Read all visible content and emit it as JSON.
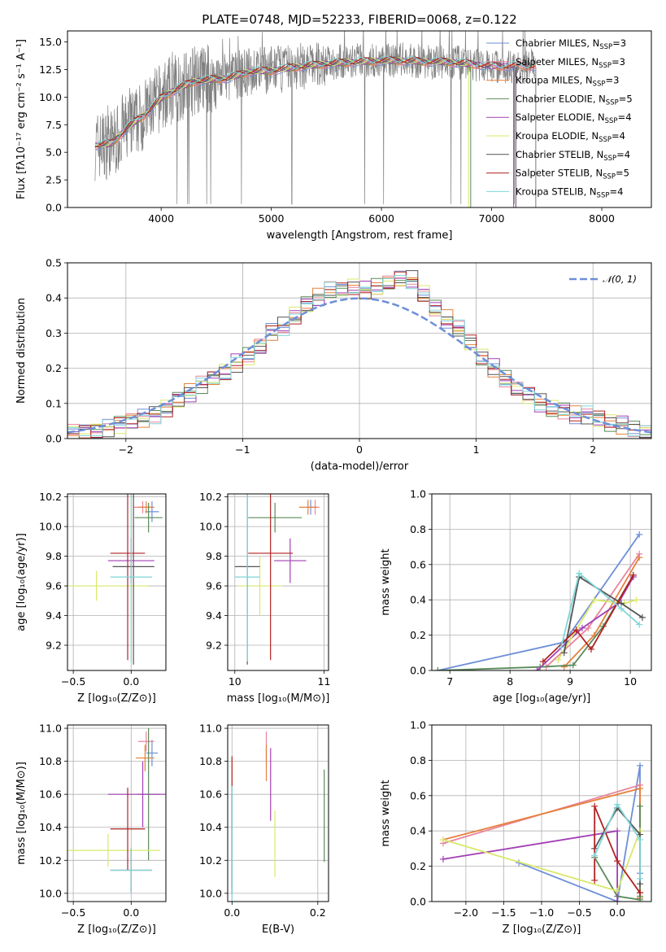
{
  "title": "PLATE=0748, MJD=52233, FIBERID=0068, z=0.122",
  "series_meta": [
    {
      "name": "Chabrier MILES, N$_{SSP}$=3",
      "label_main": "Chabrier MILES, N",
      "label_sub": "SSP",
      "label_tail": "=3",
      "color": "#6d8fd8"
    },
    {
      "name": "Salpeter MILES, N$_{SSP}$=3",
      "label_main": "Salpeter MILES, N",
      "label_sub": "SSP",
      "label_tail": "=3",
      "color": "#e8849b"
    },
    {
      "name": "Kroupa MILES, N$_{SSP}$=3",
      "label_main": "Kroupa MILES, N",
      "label_sub": "SSP",
      "label_tail": "=3",
      "color": "#e6803a"
    },
    {
      "name": "Chabrier ELODIE, N$_{SSP}$=5",
      "label_main": "Chabrier ELODIE, N",
      "label_sub": "SSP",
      "label_tail": "=5",
      "color": "#5a8a5a"
    },
    {
      "name": "Salpeter ELODIE, N$_{SSP}$=4",
      "label_main": "Salpeter ELODIE, N",
      "label_sub": "SSP",
      "label_tail": "=4",
      "color": "#a23fb5"
    },
    {
      "name": "Kroupa ELODIE, N$_{SSP}$=4",
      "label_main": "Kroupa ELODIE, N",
      "label_sub": "SSP",
      "label_tail": "=4",
      "color": "#d9e86b"
    },
    {
      "name": "Chabrier STELIB, N$_{SSP}$=4",
      "label_main": "Chabrier STELIB, N",
      "label_sub": "SSP",
      "label_tail": "=4",
      "color": "#555555"
    },
    {
      "name": "Salpeter STELIB, N$_{SSP}$=5",
      "label_main": "Salpeter STELIB, N",
      "label_sub": "SSP",
      "label_tail": "=5",
      "color": "#b22222"
    },
    {
      "name": "Kroupa STELIB, N$_{SSP}$=4",
      "label_main": "Kroupa STELIB, N",
      "label_sub": "SSP",
      "label_tail": "=4",
      "color": "#7fd6d8"
    }
  ],
  "chart_data": [
    {
      "id": "spectrum",
      "type": "line",
      "xlabel": "wavelength [Angstrom, rest frame]",
      "ylabel": "Flux [f$_\\lambda$10$^{-17}$ erg cm$^{-2}$ s$^{-1}$ A$^{-1}$]",
      "ylabel_display": "Flux [fλ10⁻¹⁷ erg cm⁻² s⁻¹ A⁻¹]",
      "xlim": [
        3150,
        8450
      ],
      "ylim": [
        0,
        16
      ],
      "xticks": [
        4000,
        5000,
        6000,
        7000,
        8000
      ],
      "yticks": [
        0.0,
        2.5,
        5.0,
        7.5,
        10.0,
        12.5,
        15.0
      ],
      "legend": "upper right",
      "data_color": "#808080",
      "envelope": {
        "x": [
          3400,
          3550,
          3700,
          3850,
          4000,
          4150,
          4300,
          4450,
          4600,
          4800,
          5000,
          5200,
          5400,
          5600,
          5800,
          6000,
          6200,
          6400,
          6600,
          6800,
          7000,
          7200,
          7400
        ],
        "y": [
          5.6,
          5.8,
          7.2,
          8.5,
          10.0,
          10.9,
          11.5,
          11.7,
          11.8,
          12.3,
          12.5,
          12.7,
          12.9,
          13.2,
          13.3,
          13.3,
          13.4,
          13.2,
          13.2,
          13.0,
          12.8,
          12.8,
          12.8
        ]
      },
      "model_x": [
        3400,
        3550,
        3700,
        3850,
        4000,
        4150,
        4300,
        4450,
        4600,
        4800,
        5000,
        5200,
        5400,
        5600,
        5800,
        6000,
        6200,
        6400,
        6600,
        6800,
        7000,
        7200,
        7400
      ],
      "model_y": [
        5.6,
        5.8,
        7.3,
        8.4,
        9.9,
        10.8,
        11.4,
        11.6,
        11.7,
        12.3,
        12.4,
        12.7,
        12.9,
        13.1,
        13.2,
        13.3,
        13.3,
        13.2,
        13.2,
        13.0,
        12.8,
        12.8,
        12.8
      ],
      "model_ends": [
        7405,
        7420,
        7410,
        6810,
        7200,
        6790,
        7220,
        7400,
        8200
      ]
    },
    {
      "id": "residuals",
      "type": "step",
      "xlabel": "(data-model)/error",
      "ylabel": "Normed distribution",
      "xlim": [
        -2.5,
        2.5
      ],
      "ylim": [
        0,
        0.5
      ],
      "xticks": [
        -2,
        -1,
        0,
        1,
        2
      ],
      "yticks": [
        0.0,
        0.1,
        0.2,
        0.3,
        0.4,
        0.5
      ],
      "grid": true,
      "legend": "upper right",
      "legend_label": "N(0,1)",
      "gauss_color": "#6d8fd8",
      "bins": [
        -2.5,
        -2.4,
        -2.3,
        -2.2,
        -2.1,
        -2.0,
        -1.9,
        -1.8,
        -1.7,
        -1.6,
        -1.5,
        -1.4,
        -1.3,
        -1.2,
        -1.1,
        -1.0,
        -0.9,
        -0.8,
        -0.7,
        -0.6,
        -0.5,
        -0.4,
        -0.3,
        -0.2,
        -0.1,
        0.0,
        0.1,
        0.2,
        0.3,
        0.4,
        0.5,
        0.6,
        0.7,
        0.8,
        0.9,
        1.0,
        1.1,
        1.2,
        1.3,
        1.4,
        1.5,
        1.6,
        1.7,
        1.8,
        1.9,
        2.0,
        2.1,
        2.2,
        2.3,
        2.4,
        2.5
      ],
      "hist_values": [
        0.017,
        0.021,
        0.026,
        0.033,
        0.041,
        0.05,
        0.057,
        0.07,
        0.088,
        0.111,
        0.13,
        0.152,
        0.17,
        0.19,
        0.215,
        0.234,
        0.26,
        0.3,
        0.32,
        0.35,
        0.38,
        0.4,
        0.42,
        0.42,
        0.43,
        0.42,
        0.43,
        0.44,
        0.45,
        0.45,
        0.41,
        0.37,
        0.34,
        0.31,
        0.27,
        0.23,
        0.2,
        0.17,
        0.14,
        0.12,
        0.1,
        0.085,
        0.08,
        0.07,
        0.065,
        0.055,
        0.045,
        0.04,
        0.03,
        0.02
      ]
    },
    {
      "id": "age_vs_Z",
      "type": "errorbar",
      "xlabel": "Z [log$_{10}$(Z/Z$_\\odot$)]",
      "ylabel": "age  [log$_{10}$(age/yr)]",
      "xlim": [
        -0.55,
        0.3
      ],
      "ylim": [
        9.03,
        10.22
      ],
      "xticks": [
        -0.5,
        0.0
      ],
      "yticks": [
        9.2,
        9.4,
        9.6,
        9.8,
        10.0,
        10.2
      ],
      "grid": true,
      "points": [
        {
          "x": 0.18,
          "xerr": 0.06,
          "y": 10.1,
          "yerr": 0.07
        },
        {
          "x": 0.1,
          "xerr": 0.08,
          "y": 10.13,
          "yerr": 0.04
        },
        {
          "x": 0.13,
          "xerr": 0.07,
          "y": 10.13,
          "yerr": 0.04
        },
        {
          "x": 0.15,
          "xerr": 0.12,
          "y": 10.06,
          "yerr": 0.1
        },
        {
          "x": 0.0,
          "xerr": 0.2,
          "y": 9.77,
          "yerr": 0.15
        },
        {
          "x": -0.3,
          "xerr": 0.45,
          "y": 9.6,
          "yerr": 0.1
        },
        {
          "x": 0.02,
          "xerr": 0.18,
          "y": 9.73,
          "yerr": 0.66
        },
        {
          "x": -0.03,
          "xerr": 0.15,
          "y": 9.82,
          "yerr": 0.72
        },
        {
          "x": 0.0,
          "xerr": 0.18,
          "y": 9.66,
          "yerr": 0.57
        }
      ]
    },
    {
      "id": "age_vs_mass",
      "type": "errorbar",
      "xlabel": "mass [log$_{10}$(M/M$_\\odot$)]",
      "ylabel": "",
      "xlim": [
        9.92,
        11.05
      ],
      "ylim": [
        9.03,
        10.22
      ],
      "xticks": [
        10,
        11
      ],
      "yticks": [
        9.2,
        9.4,
        9.6,
        9.8,
        10.0,
        10.2
      ],
      "grid": true,
      "points": [
        {
          "x": 10.85,
          "xerr": 0.05,
          "y": 10.13,
          "yerr": 0.05
        },
        {
          "x": 10.9,
          "xerr": 0.05,
          "y": 10.13,
          "yerr": 0.05
        },
        {
          "x": 10.82,
          "xerr": 0.1,
          "y": 10.13,
          "yerr": 0.05
        },
        {
          "x": 10.45,
          "xerr": 0.3,
          "y": 10.06,
          "yerr": 0.1
        },
        {
          "x": 10.62,
          "xerr": 0.18,
          "y": 9.77,
          "yerr": 0.15
        },
        {
          "x": 10.28,
          "xerr": 0.25,
          "y": 9.6,
          "yerr": 0.2
        },
        {
          "x": 10.14,
          "xerr": 0.14,
          "y": 9.73,
          "yerr": 0.66
        },
        {
          "x": 10.4,
          "xerr": 0.25,
          "y": 9.82,
          "yerr": 0.72
        },
        {
          "x": 10.14,
          "xerr": 0.14,
          "y": 9.66,
          "yerr": 0.57
        }
      ]
    },
    {
      "id": "mass_weight_vs_age",
      "type": "line",
      "xlabel": "age  [log$_{10}$(age/yr)]",
      "ylabel": "mass weight",
      "xlim": [
        6.7,
        10.35
      ],
      "ylim": [
        0,
        1
      ],
      "xticks": [
        7,
        8,
        9,
        10
      ],
      "yticks": [
        0.0,
        0.2,
        0.4,
        0.6,
        0.8,
        1.0
      ],
      "grid": true,
      "series_points": [
        {
          "x": [
            6.8,
            8.9,
            10.15
          ],
          "y": [
            0.0,
            0.16,
            0.77
          ]
        },
        {
          "x": [
            8.6,
            9.3,
            10.15
          ],
          "y": [
            0.02,
            0.24,
            0.66
          ]
        },
        {
          "x": [
            8.9,
            9.4,
            10.15
          ],
          "y": [
            0.02,
            0.2,
            0.64
          ]
        },
        {
          "x": [
            6.8,
            8.5,
            9.05,
            9.55,
            10.05
          ],
          "y": [
            0.0,
            0.02,
            0.03,
            0.25,
            0.54
          ]
        },
        {
          "x": [
            8.45,
            9.2,
            9.8,
            10.05
          ],
          "y": [
            0.0,
            0.24,
            0.38,
            0.53
          ]
        },
        {
          "x": [
            8.8,
            9.4,
            9.9,
            10.1
          ],
          "y": [
            0.06,
            0.4,
            0.38,
            0.4
          ]
        },
        {
          "x": [
            8.9,
            9.15,
            9.85,
            10.2
          ],
          "y": [
            0.1,
            0.53,
            0.38,
            0.3
          ]
        },
        {
          "x": [
            8.55,
            9.1,
            9.35,
            10.05
          ],
          "y": [
            0.05,
            0.23,
            0.12,
            0.54
          ]
        },
        {
          "x": [
            8.85,
            9.15,
            9.85,
            10.15
          ],
          "y": [
            0.13,
            0.55,
            0.35,
            0.26
          ]
        }
      ]
    },
    {
      "id": "mass_vs_Z",
      "type": "errorbar",
      "xlabel": "Z [log$_{10}$(Z/Z$_\\odot$)]",
      "ylabel": "mass [log$_{10}$(M/M$_\\odot$)]",
      "xlim": [
        -0.55,
        0.3
      ],
      "ylim": [
        9.95,
        11.02
      ],
      "xticks": [
        -0.5,
        0.0
      ],
      "yticks": [
        10.0,
        10.2,
        10.4,
        10.6,
        10.8,
        11.0
      ],
      "grid": true,
      "points": [
        {
          "x": 0.18,
          "xerr": 0.05,
          "y": 10.85,
          "yerr": 0.08
        },
        {
          "x": 0.13,
          "xerr": 0.07,
          "y": 10.92,
          "yerr": 0.06
        },
        {
          "x": 0.12,
          "xerr": 0.08,
          "y": 10.82,
          "yerr": 0.08
        },
        {
          "x": 0.15,
          "xerr": 0.1,
          "y": 10.6,
          "yerr": 0.4
        },
        {
          "x": 0.1,
          "xerr": 0.3,
          "y": 10.6,
          "yerr": 0.2
        },
        {
          "x": -0.2,
          "xerr": 0.45,
          "y": 10.26,
          "yerr": 0.1
        },
        {
          "x": 0.0,
          "xerr": 0.18,
          "y": 10.14,
          "yerr": 0.13
        },
        {
          "x": -0.03,
          "xerr": 0.15,
          "y": 10.39,
          "yerr": 0.25
        },
        {
          "x": 0.0,
          "xerr": 0.18,
          "y": 10.14,
          "yerr": 0.14
        }
      ]
    },
    {
      "id": "mass_vs_EBV",
      "type": "errorbar",
      "xlabel": "E(B-V)",
      "ylabel": "",
      "xlim": [
        -0.01,
        0.225
      ],
      "ylim": [
        9.95,
        11.02
      ],
      "xticks": [
        0.0,
        0.2
      ],
      "yticks": [
        10.0,
        10.2,
        10.4,
        10.6,
        10.8,
        11.0
      ],
      "grid": true,
      "points": [
        {
          "x": 0.0,
          "xerr": 0.0,
          "y": 10.3,
          "yerr": 0.3
        },
        {
          "x": 0.08,
          "xerr": 0.0,
          "y": 10.88,
          "yerr": 0.1
        },
        {
          "x": 0.08,
          "xerr": 0.0,
          "y": 10.79,
          "yerr": 0.11
        },
        {
          "x": 0.215,
          "xerr": 0.0,
          "y": 10.47,
          "yerr": 0.28
        },
        {
          "x": 0.09,
          "xerr": 0.0,
          "y": 10.66,
          "yerr": 0.22
        },
        {
          "x": 0.1,
          "xerr": 0.0,
          "y": 10.3,
          "yerr": 0.2
        },
        {
          "x": 0.0,
          "xerr": 0.0,
          "y": 10.3,
          "yerr": 0.3
        },
        {
          "x": 0.0,
          "xerr": 0.0,
          "y": 10.43,
          "yerr": 0.4
        },
        {
          "x": 0.0,
          "xerr": 0.0,
          "y": 10.25,
          "yerr": 0.4
        }
      ]
    },
    {
      "id": "mass_weight_vs_Z",
      "type": "line",
      "xlabel": "Z [log$_{10}$(Z/Z$_\\odot$)]",
      "ylabel": "mass weight",
      "xlim": [
        -2.45,
        0.45
      ],
      "ylim": [
        0,
        1
      ],
      "xticks": [
        -2.0,
        -1.5,
        -1.0,
        -0.5,
        0.0
      ],
      "yticks": [
        0.0,
        0.2,
        0.4,
        0.6,
        0.8,
        1.0
      ],
      "grid": true,
      "series_points": [
        {
          "x": [
            -1.3,
            0.0,
            0.3,
            0.3
          ],
          "y": [
            0.22,
            0.0,
            0.77,
            0.16
          ]
        },
        {
          "x": [
            -2.3,
            0.3,
            0.3
          ],
          "y": [
            0.33,
            0.66,
            0.02
          ]
        },
        {
          "x": [
            -2.3,
            0.3,
            0.3
          ],
          "y": [
            0.35,
            0.64,
            0.02
          ]
        },
        {
          "x": [
            -0.3,
            0.0,
            0.3,
            0.3,
            0.3
          ],
          "y": [
            0.25,
            0.03,
            0.01,
            0.54,
            0.03
          ]
        },
        {
          "x": [
            -2.3,
            0.0,
            0.0
          ],
          "y": [
            0.24,
            0.4,
            0.0
          ]
        },
        {
          "x": [
            -2.3,
            0.0,
            0.3,
            0.3
          ],
          "y": [
            0.35,
            0.06,
            0.4,
            0.38
          ]
        },
        {
          "x": [
            -0.3,
            0.0,
            0.3,
            0.3
          ],
          "y": [
            0.3,
            0.53,
            0.38,
            0.1
          ]
        },
        {
          "x": [
            -0.3,
            -0.3,
            0.0,
            0.3,
            0.3
          ],
          "y": [
            0.12,
            0.54,
            0.23,
            0.05,
            0.05
          ]
        },
        {
          "x": [
            -0.3,
            0.0,
            0.3,
            0.3
          ],
          "y": [
            0.26,
            0.55,
            0.35,
            0.13
          ]
        }
      ]
    }
  ]
}
